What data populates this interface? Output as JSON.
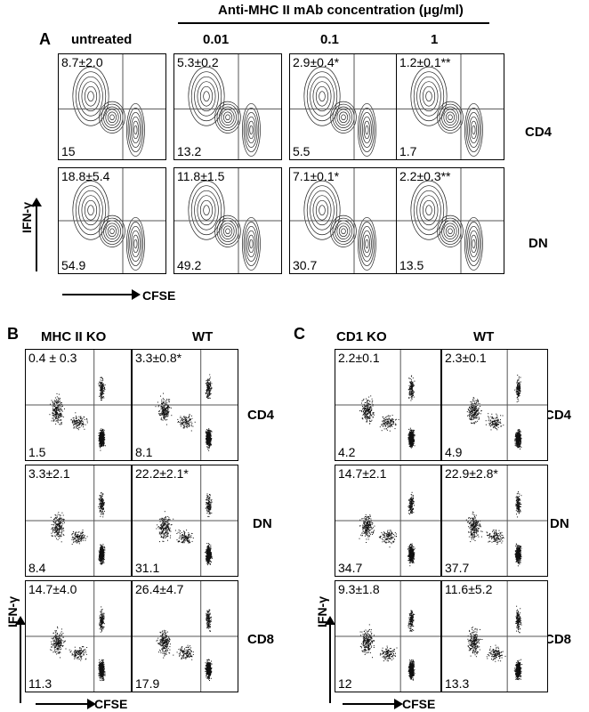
{
  "panel_a": {
    "letter": "A",
    "header": "Anti-MHC II mAb concentration (μg/ml)",
    "columns": [
      "untreated",
      "0.01",
      "0.1",
      "1"
    ],
    "rows": [
      "CD4",
      "DN"
    ],
    "y_axis": "IFN-γ",
    "x_axis": "CFSE",
    "cells": [
      [
        {
          "top": "8.7±2.0",
          "bottom": "15"
        },
        {
          "top": "5.3±0.2",
          "bottom": "13.2"
        },
        {
          "top": "2.9±0.4*",
          "bottom": "5.5"
        },
        {
          "top": "1.2±0.1**",
          "bottom": "1.7"
        }
      ],
      [
        {
          "top": "18.8±5.4",
          "bottom": "54.9"
        },
        {
          "top": "11.8±1.5",
          "bottom": "49.2"
        },
        {
          "top": "7.1±0.1*",
          "bottom": "30.7"
        },
        {
          "top": "2.2±0.3**",
          "bottom": "13.5"
        }
      ]
    ]
  },
  "panel_b": {
    "letter": "B",
    "columns": [
      "MHC II KO",
      "WT"
    ],
    "rows": [
      "CD4",
      "DN",
      "CD8"
    ],
    "y_axis": "IFN-γ",
    "x_axis": "CFSE",
    "cells": [
      [
        {
          "top": "0.4 ± 0.3",
          "bottom": "1.5"
        },
        {
          "top": "3.3±0.8*",
          "bottom": "8.1"
        }
      ],
      [
        {
          "top": "3.3±2.1",
          "bottom": "8.4"
        },
        {
          "top": "22.2±2.1*",
          "bottom": "31.1"
        }
      ],
      [
        {
          "top": "14.7±4.0",
          "bottom": "11.3"
        },
        {
          "top": "26.4±4.7",
          "bottom": "17.9"
        }
      ]
    ]
  },
  "panel_c": {
    "letter": "C",
    "columns": [
      "CD1 KO",
      "WT"
    ],
    "rows": [
      "CD4",
      "DN",
      "CD8"
    ],
    "y_axis": "IFN-γ",
    "x_axis": "CFSE",
    "cells": [
      [
        {
          "top": "2.2±0.1",
          "bottom": "4.2"
        },
        {
          "top": "2.3±0.1",
          "bottom": "4.9"
        }
      ],
      [
        {
          "top": "14.7±2.1",
          "bottom": "34.7"
        },
        {
          "top": "22.9±2.8*",
          "bottom": "37.7"
        }
      ],
      [
        {
          "top": "9.3±1.8",
          "bottom": "12"
        },
        {
          "top": "11.6±5.2",
          "bottom": "13.3"
        }
      ]
    ]
  }
}
